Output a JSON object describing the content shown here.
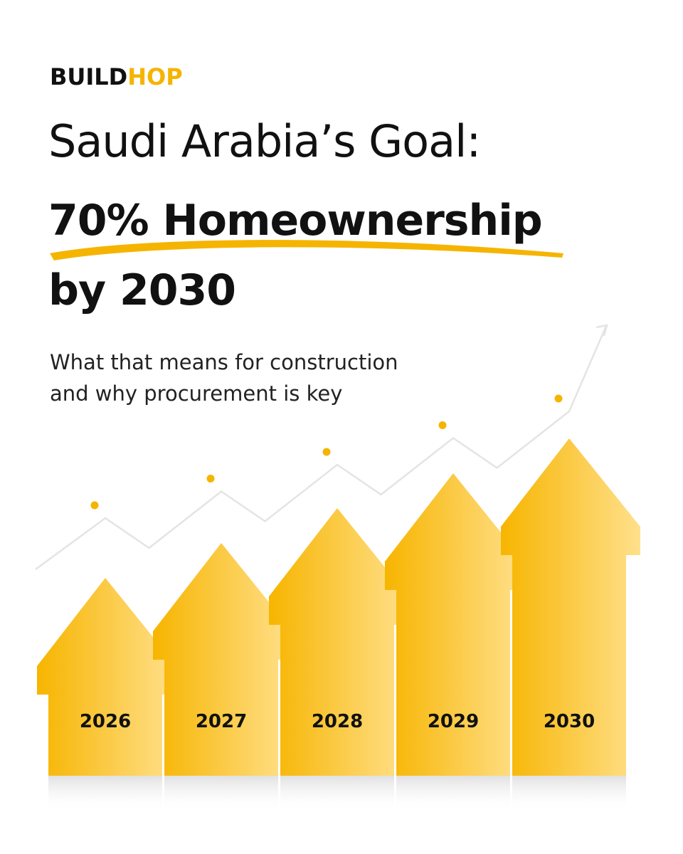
{
  "brand": {
    "logo_part1": "BUILD",
    "logo_part2": "HOP",
    "accent_color": "#f5b400"
  },
  "headline": {
    "line1": "Saudi Arabia’s Goal:",
    "line2": "70% Homeownership",
    "line3": "by 2030"
  },
  "subtitle": {
    "line1": "What that means for construction",
    "line2": "and why procurement is key"
  },
  "chart_data": {
    "type": "bar",
    "categories": [
      "2026",
      "2027",
      "2028",
      "2029",
      "2030"
    ],
    "values": [
      1,
      2,
      3,
      4,
      5
    ],
    "trend_line": true,
    "bar_shape": "house-arrow",
    "bar_color": "#f5b400"
  }
}
